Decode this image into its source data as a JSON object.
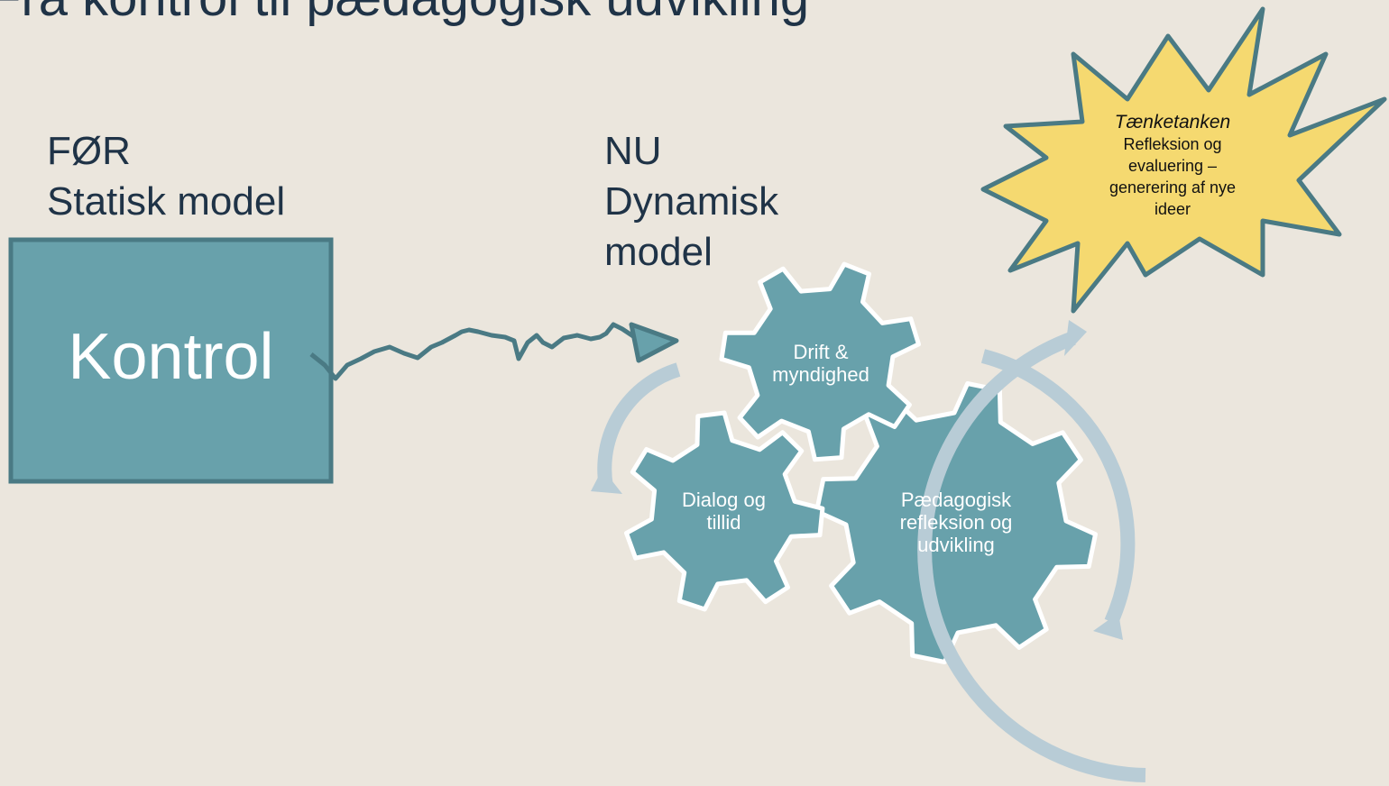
{
  "header": {
    "title": "Fra kontrol til pædagogisk udvikling"
  },
  "before": {
    "label": "FØR",
    "model": "Statisk model",
    "box": "Kontrol"
  },
  "now": {
    "label": "NU",
    "model": "Dynamisk model"
  },
  "gears": [
    "Drift & myndighed",
    "Dialog og tillid",
    "Pædagogisk refleksion og udvikling"
  ],
  "thinktank": {
    "title": "Tænketanken",
    "text": "Refleksion og evaluering – generering af nye ideer"
  }
}
